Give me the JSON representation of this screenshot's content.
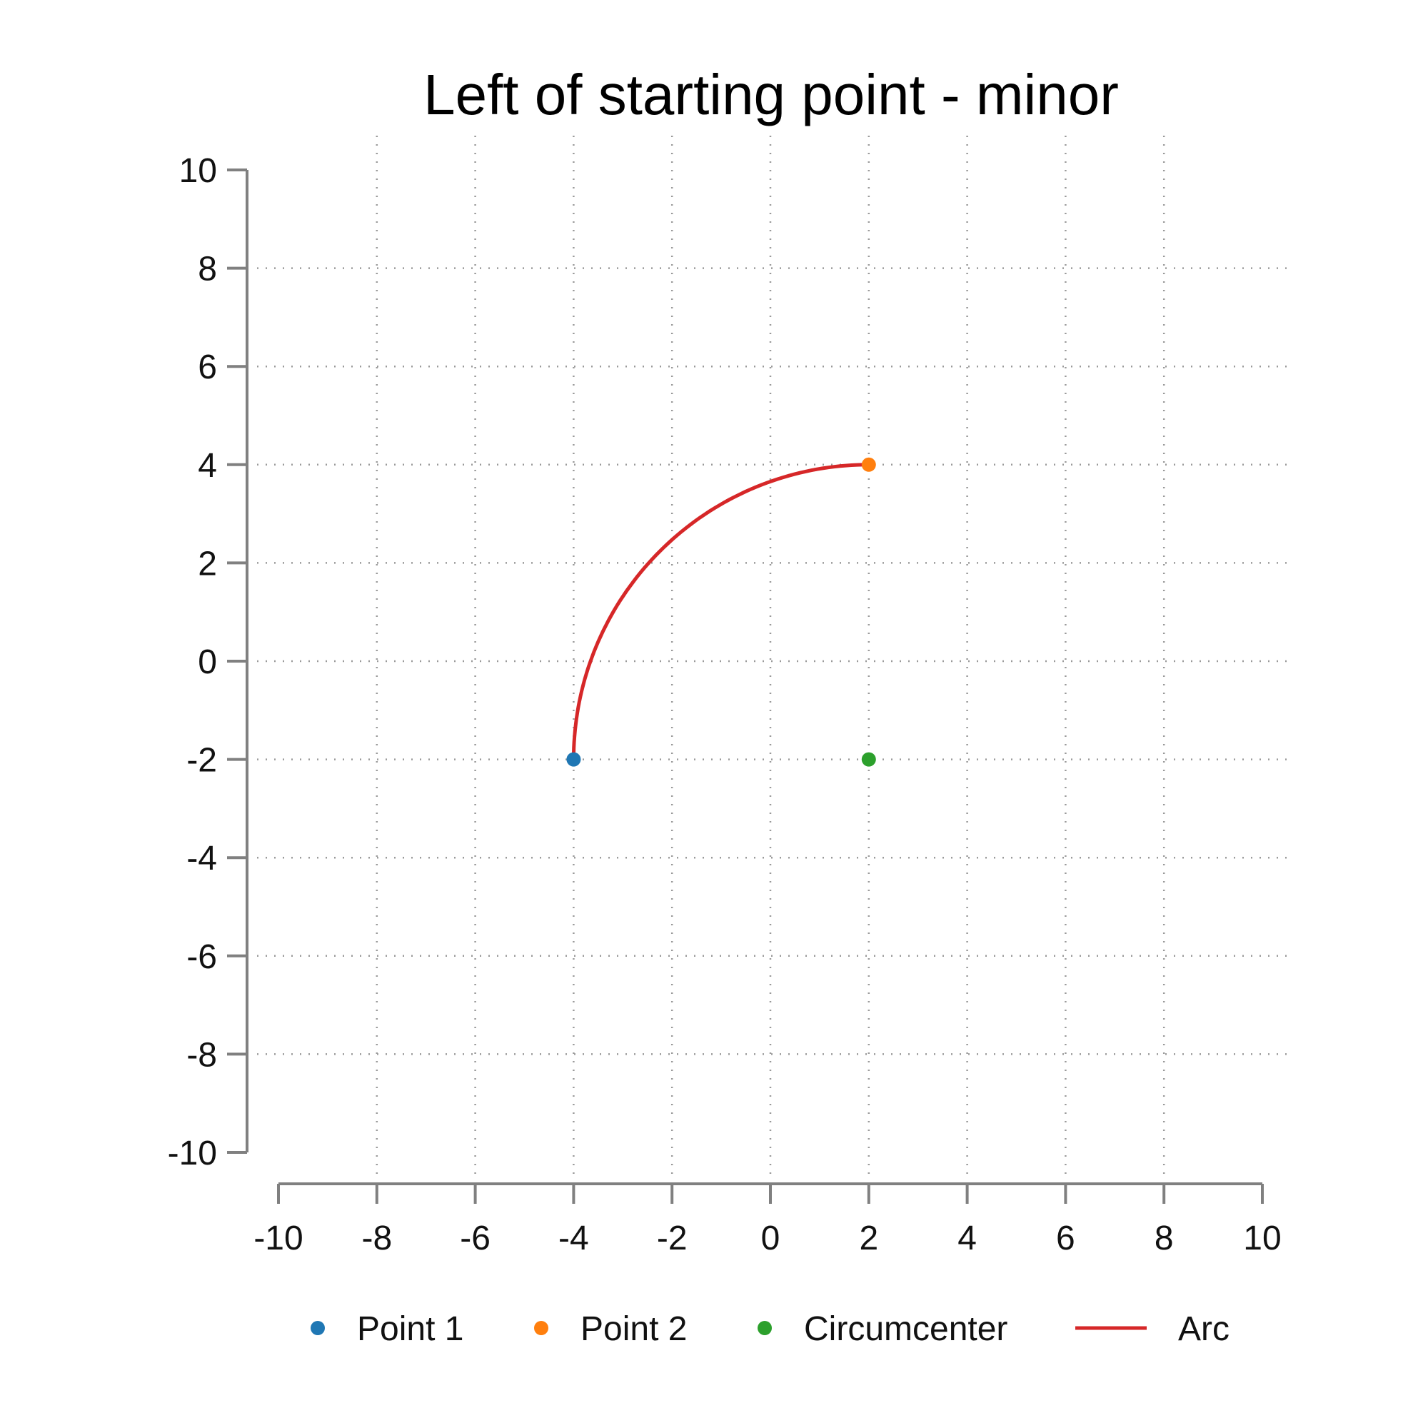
{
  "chart_data": {
    "type": "scatter",
    "title": "Left of starting point - minor",
    "xlabel": "",
    "ylabel": "",
    "xlim": [
      -10,
      10
    ],
    "ylim": [
      -10,
      10
    ],
    "x_ticks": [
      -10,
      -8,
      -6,
      -4,
      -2,
      0,
      2,
      4,
      6,
      8,
      10
    ],
    "y_ticks": [
      -10,
      -8,
      -6,
      -4,
      -2,
      0,
      2,
      4,
      6,
      8,
      10
    ],
    "x_tick_labels": [
      "-10",
      "-8",
      "-6",
      "-4",
      "-2",
      "0",
      "2",
      "4",
      "6",
      "8",
      "10"
    ],
    "y_tick_labels": [
      "-10",
      "-8",
      "-6",
      "-4",
      "-2",
      "0",
      "2",
      "4",
      "6",
      "8",
      "10"
    ],
    "grid": true,
    "legend_position": "bottom",
    "points": [
      {
        "name": "Point 1",
        "x": -4,
        "y": -2,
        "color": "#1f77b4"
      },
      {
        "name": "Point 2",
        "x": 2,
        "y": 4,
        "color": "#ff7f0e"
      },
      {
        "name": "Circumcenter",
        "x": 2,
        "y": -2,
        "color": "#2ca02c"
      }
    ],
    "arc": {
      "name": "Arc",
      "color": "#d62728",
      "center": [
        2,
        -2
      ],
      "radius": 6,
      "start_angle_deg": 180,
      "end_angle_deg": 90
    }
  }
}
